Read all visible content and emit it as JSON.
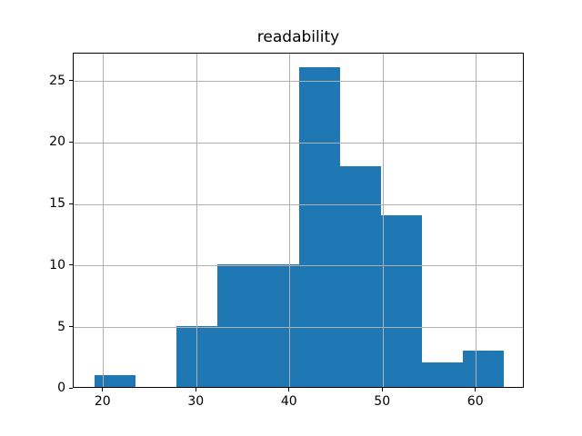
{
  "chart_data": {
    "type": "bar",
    "subtype": "histogram",
    "title": "readability",
    "xlabel": "",
    "ylabel": "",
    "bin_edges": [
      19.0,
      23.4,
      27.8,
      32.2,
      36.6,
      41.0,
      45.4,
      49.8,
      54.2,
      58.6,
      63.0
    ],
    "counts": [
      1,
      0,
      5,
      10,
      10,
      26,
      18,
      14,
      2,
      3
    ],
    "x_ticks": [
      20,
      30,
      40,
      50,
      60
    ],
    "y_ticks": [
      0,
      5,
      10,
      15,
      20,
      25
    ],
    "xlim": [
      16.8,
      65.2
    ],
    "ylim": [
      0,
      27.3
    ],
    "grid": true,
    "grid_above_bars": true,
    "legend": false,
    "colors": {
      "bar": "#1f77b4",
      "grid": "#b0b0b0",
      "spine": "#000000",
      "text": "#000000",
      "background": "#ffffff"
    }
  }
}
